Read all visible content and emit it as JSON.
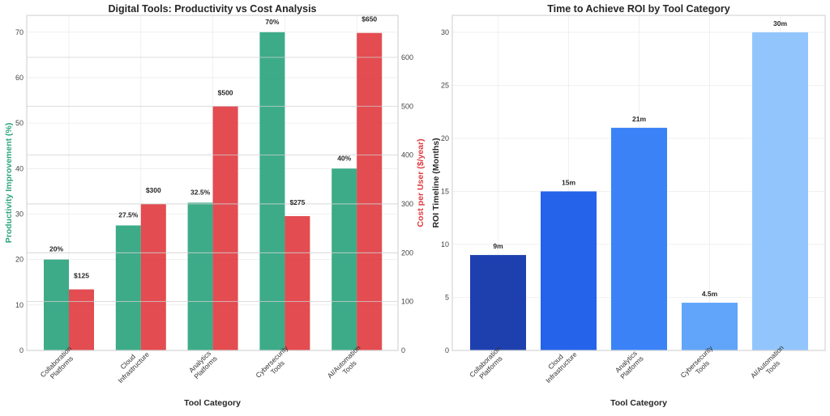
{
  "chart_data": [
    {
      "type": "bar",
      "title": "Digital Tools: Productivity vs Cost Analysis",
      "xlabel": "Tool Category",
      "categories": [
        "Collaboration\nPlatforms",
        "Cloud\nInfrastructure",
        "Analytics\nPlatforms",
        "Cybersecurity\nTools",
        "AI/Automation\nTools"
      ],
      "series": [
        {
          "name": "Productivity Improvement (%)",
          "axis": "left",
          "color": "#2ca47e",
          "values": [
            20,
            27.5,
            32.5,
            70,
            40
          ],
          "labels": [
            "20%",
            "27.5%",
            "32.5%",
            "70%",
            "40%"
          ]
        },
        {
          "name": "Cost per User ($/year)",
          "axis": "right",
          "color": "#e0393e",
          "values": [
            125,
            300,
            500,
            275,
            650
          ],
          "labels": [
            "$125",
            "$300",
            "$500",
            "$275",
            "$650"
          ]
        }
      ],
      "ylabel": "Productivity Improvement (%)",
      "ylabel_color": "#2ca47e",
      "ylim": [
        0,
        73.7
      ],
      "yticks": [
        0,
        10,
        20,
        30,
        40,
        50,
        60,
        70
      ],
      "y2label": "Cost per User ($/year)",
      "y2label_color": "#e0393e",
      "y2lim": [
        0,
        686
      ],
      "y2ticks": [
        0,
        100,
        200,
        300,
        400,
        500,
        600
      ],
      "grid": true
    },
    {
      "type": "bar",
      "title": "Time to Achieve ROI by Tool Category",
      "xlabel": "Tool Category",
      "ylabel": "ROI Timeline (Months)",
      "categories": [
        "Collaboration\nPlatforms",
        "Cloud\nInfrastructure",
        "Analytics\nPlatforms",
        "Cybersecurity\nTools",
        "AI/Automation\nTools"
      ],
      "values": [
        9,
        15,
        21,
        4.5,
        30
      ],
      "labels": [
        "9m",
        "15m",
        "21m",
        "4.5m",
        "30m"
      ],
      "colors": [
        "#1e40af",
        "#2563eb",
        "#3b82f6",
        "#60a5fa",
        "#93c5fd"
      ],
      "ylim": [
        0,
        31.6
      ],
      "yticks": [
        0,
        5,
        10,
        15,
        20,
        25,
        30
      ],
      "grid": true
    }
  ]
}
